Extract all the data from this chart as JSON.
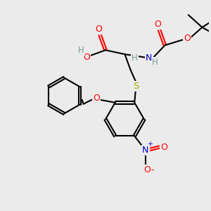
{
  "bg_color": "#ebebeb",
  "colors": {
    "O": "#ff0000",
    "N": "#0000cc",
    "S": "#aaaa00",
    "H": "#7a9a9a",
    "C": "#000000"
  },
  "figsize": [
    3.0,
    3.0
  ],
  "dpi": 100
}
